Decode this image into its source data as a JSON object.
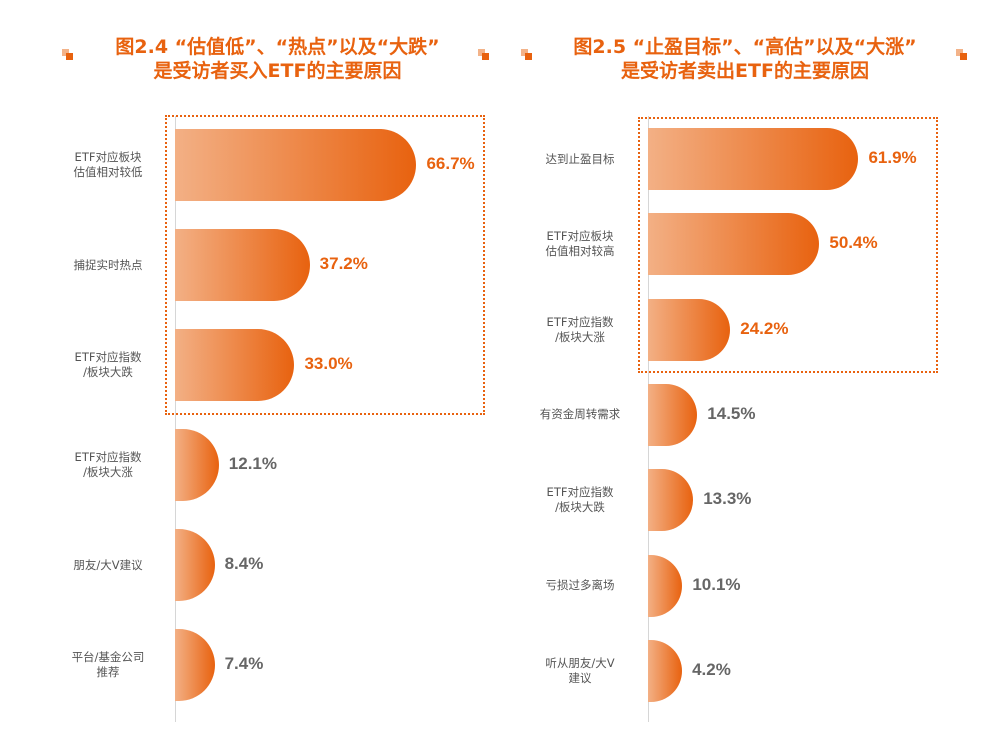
{
  "accent_color": "#E8620F",
  "muted_value_color": "#666666",
  "chart_data": [
    {
      "type": "bar",
      "orientation": "horizontal",
      "title_lines": [
        "图2.4 “估值低”、“热点”以及“大跌”",
        "是受访者买入ETF的主要原因"
      ],
      "unit": "%",
      "xlim": [
        0,
        70
      ],
      "highlighted_count": 3,
      "categories": [
        [
          "ETF对应板块",
          "估值相对较低"
        ],
        [
          "捕捉实时热点"
        ],
        [
          "ETF对应指数",
          "/板块大跌"
        ],
        [
          "ETF对应指数",
          "/板块大涨"
        ],
        [
          "朋友/大V建议"
        ],
        [
          "平台/基金公司",
          "推荐"
        ]
      ],
      "values": [
        66.7,
        37.2,
        33.0,
        12.1,
        8.4,
        7.4
      ],
      "value_labels": [
        "66.7%",
        "37.2%",
        "33.0%",
        "12.1%",
        "8.4%",
        "7.4%"
      ]
    },
    {
      "type": "bar",
      "orientation": "horizontal",
      "title_lines": [
        "图2.5 “止盈目标”、“高估”以及“大涨”",
        "是受访者卖出ETF的主要原因"
      ],
      "unit": "%",
      "xlim": [
        0,
        70
      ],
      "highlighted_count": 3,
      "categories": [
        [
          "达到止盈目标"
        ],
        [
          "ETF对应板块",
          "估值相对较高"
        ],
        [
          "ETF对应指数",
          "/板块大涨"
        ],
        [
          "有资金周转需求"
        ],
        [
          "ETF对应指数",
          "/板块大跌"
        ],
        [
          "亏损过多离场"
        ],
        [
          "听从朋友/大V",
          "建议"
        ]
      ],
      "values": [
        61.9,
        50.4,
        24.2,
        14.5,
        13.3,
        10.1,
        4.2
      ],
      "value_labels": [
        "61.9%",
        "50.4%",
        "24.2%",
        "14.5%",
        "13.3%",
        "10.1%",
        "4.2%"
      ]
    }
  ]
}
